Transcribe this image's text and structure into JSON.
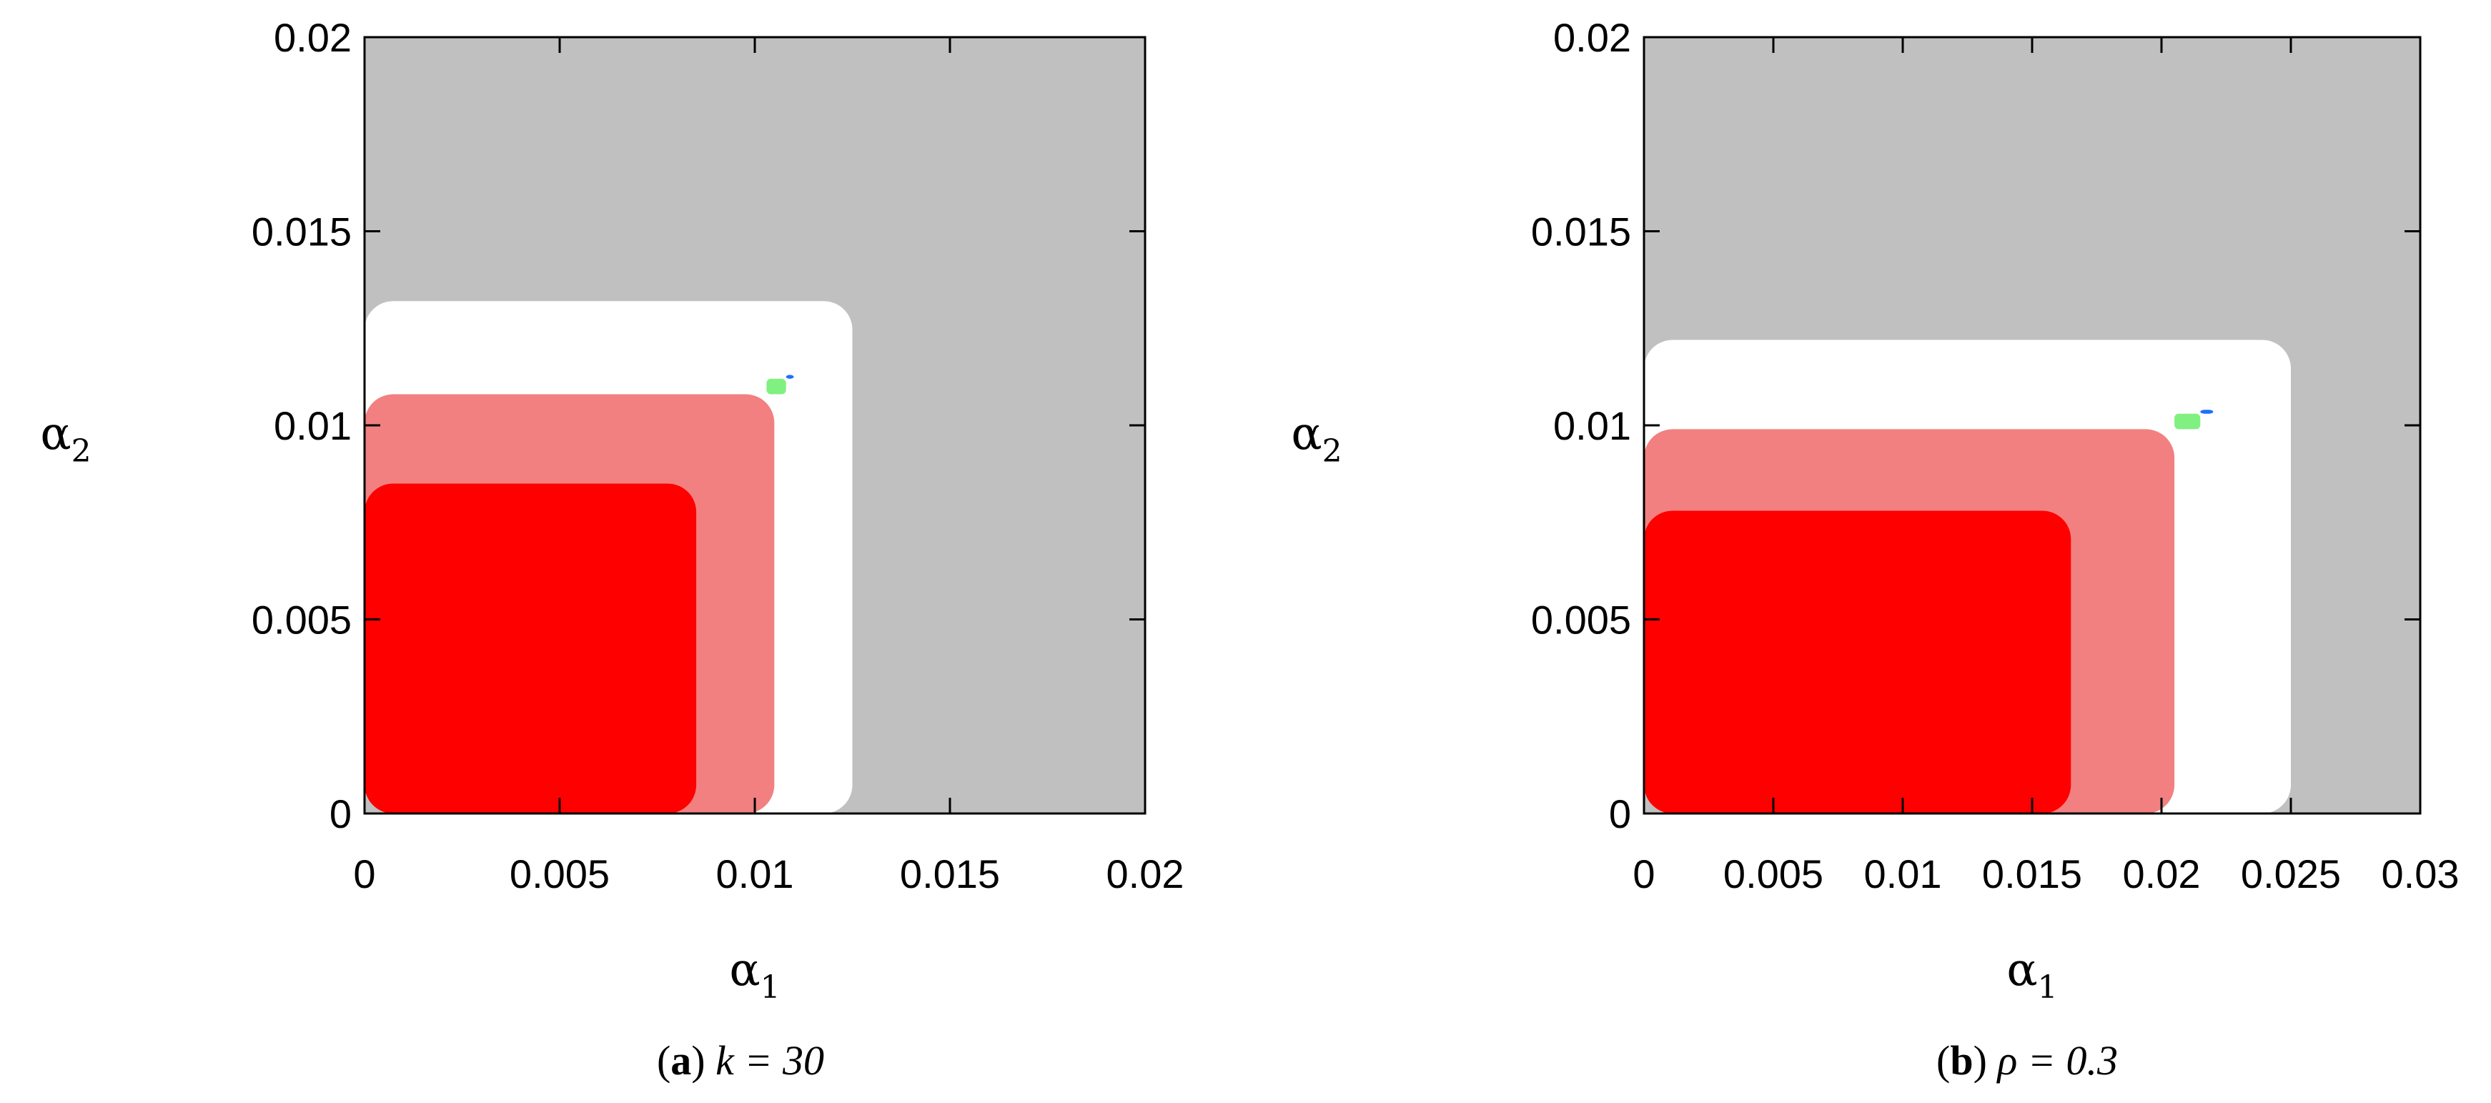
{
  "chart_data": [
    {
      "type": "heatmap",
      "panel": "a",
      "caption": {
        "label": "a",
        "text": "k = 30"
      },
      "xlabel": "α1",
      "ylabel": "α2",
      "xlim": [
        0,
        0.02
      ],
      "ylim": [
        0,
        0.02
      ],
      "xticks": [
        "0",
        "0.005",
        "0.01",
        "0.015",
        "0.02"
      ],
      "yticks": [
        "0",
        "0.005",
        "0.01",
        "0.015",
        "0.02"
      ],
      "grid": false,
      "colors": {
        "background": "#c0c0c0",
        "white": "#ffffff",
        "red": "#ff0000",
        "pink": "#f28080",
        "green": "#80f080",
        "blue": "#1f6fff"
      },
      "regions": [
        {
          "color": "white",
          "alpha1_max": 0.0125,
          "alpha2_max": 0.0132
        },
        {
          "color": "pink",
          "alpha1_max": 0.0105,
          "alpha2_max": 0.0108
        },
        {
          "color": "red",
          "alpha1_max": 0.0085,
          "alpha2_max": 0.0085
        },
        {
          "color": "green",
          "alpha1_range": [
            0.0103,
            0.0108
          ],
          "alpha2_range": [
            0.0108,
            0.0112
          ]
        },
        {
          "color": "blue",
          "alpha1_range": [
            0.0108,
            0.011
          ],
          "alpha2_range": [
            0.0112,
            0.0113
          ]
        }
      ]
    },
    {
      "type": "heatmap",
      "panel": "b",
      "caption": {
        "label": "b",
        "text": "ρ = 0.3"
      },
      "xlabel": "α1",
      "ylabel": "α2",
      "xlim": [
        0,
        0.03
      ],
      "ylim": [
        0,
        0.02
      ],
      "xticks": [
        "0",
        "0.005",
        "0.01",
        "0.015",
        "0.02",
        "0.025",
        "0.03"
      ],
      "yticks": [
        "0",
        "0.005",
        "0.01",
        "0.015",
        "0.02"
      ],
      "grid": false,
      "colors": {
        "background": "#c0c0c0",
        "white": "#ffffff",
        "red": "#ff0000",
        "pink": "#f28080",
        "green": "#80f080",
        "blue": "#1f6fff"
      },
      "regions": [
        {
          "color": "white",
          "alpha1_max": 0.025,
          "alpha2_max": 0.0122
        },
        {
          "color": "pink",
          "alpha1_max": 0.0205,
          "alpha2_max": 0.0099
        },
        {
          "color": "red",
          "alpha1_max": 0.0165,
          "alpha2_max": 0.0078
        },
        {
          "color": "green",
          "alpha1_range": [
            0.0205,
            0.0215
          ],
          "alpha2_range": [
            0.0099,
            0.0103
          ]
        },
        {
          "color": "blue",
          "alpha1_range": [
            0.0215,
            0.022
          ],
          "alpha2_range": [
            0.0103,
            0.0104
          ]
        }
      ]
    }
  ]
}
